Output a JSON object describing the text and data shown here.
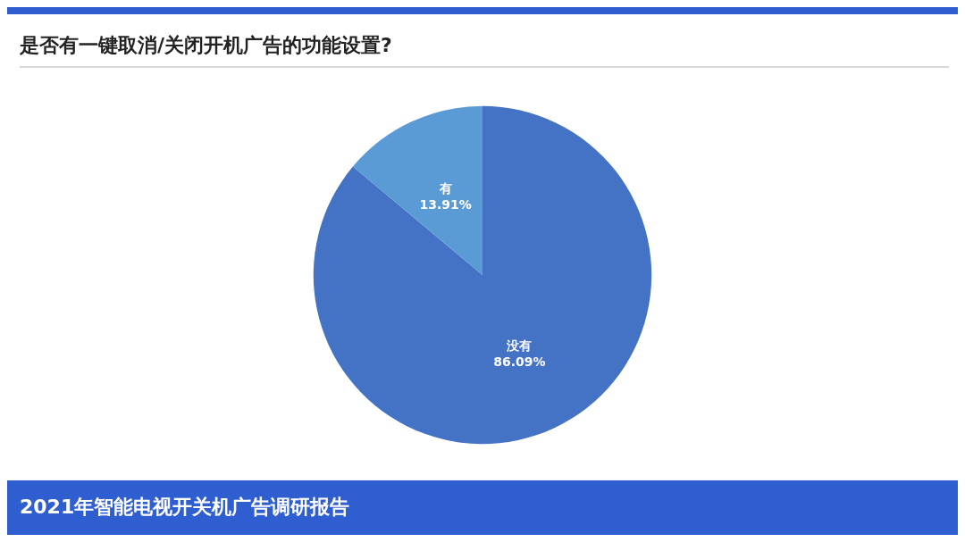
{
  "chart_data": {
    "type": "pie",
    "title": "是否有一键取消/关闭开机广告的功能设置?",
    "categories": [
      "没有",
      "有"
    ],
    "values": [
      86.09,
      13.91
    ],
    "colors": [
      "#4472c4",
      "#5b9bd5"
    ],
    "value_labels": [
      "86.09%",
      "13.91%"
    ],
    "legend": false,
    "annotations": [
      "2021年智能电视开关机广告调研报告"
    ]
  }
}
